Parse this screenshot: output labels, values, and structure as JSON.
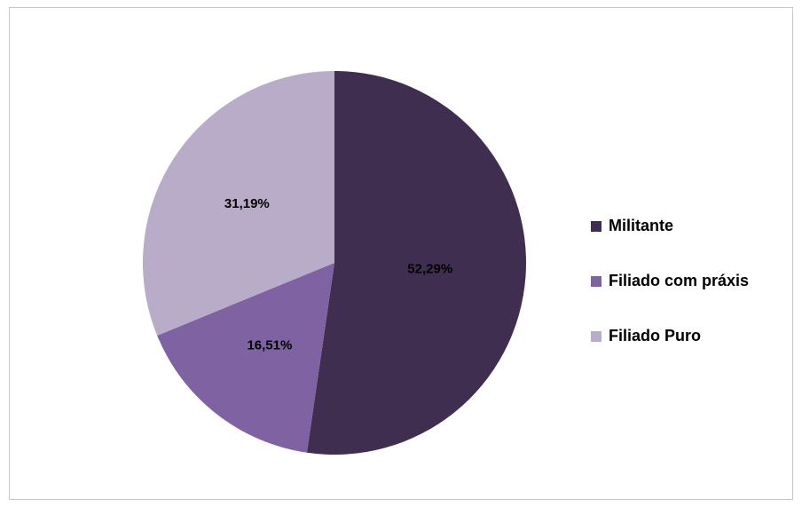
{
  "chart_data": {
    "type": "pie",
    "title": "",
    "slices": [
      {
        "name": "Militante",
        "value": 52.29,
        "label": "52,29%",
        "color": "#3f2e50"
      },
      {
        "name": "Filiado com práxis",
        "value": 16.51,
        "label": "16,51%",
        "color": "#7e62a1"
      },
      {
        "name": "Filiado Puro",
        "value": 31.19,
        "label": "31,19%",
        "color": "#b8acc9"
      }
    ],
    "start_angle_deg": 0,
    "direction": "clockwise",
    "legend_position": "right"
  }
}
